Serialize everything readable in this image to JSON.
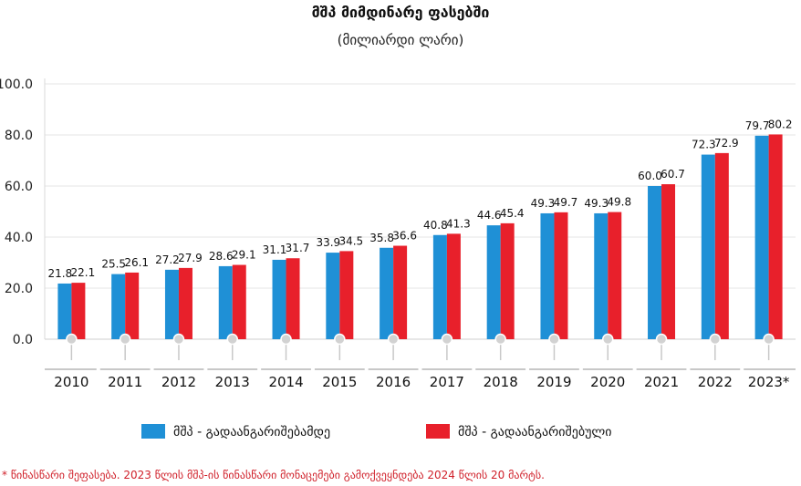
{
  "chart_data": {
    "type": "bar",
    "title": "მშპ მიმდინარე ფასებში",
    "subtitle": "(მილიარდი ლარი)",
    "categories": [
      "2010",
      "2011",
      "2012",
      "2013",
      "2014",
      "2015",
      "2016",
      "2017",
      "2018",
      "2019",
      "2020",
      "2021",
      "2022",
      "2023*"
    ],
    "series": [
      {
        "name": "მშპ - გადაანგარიშებამდე",
        "color": "#1f90d6",
        "values": [
          21.8,
          25.5,
          27.2,
          28.6,
          31.1,
          33.9,
          35.8,
          40.8,
          44.6,
          49.3,
          49.3,
          60.0,
          72.3,
          79.7
        ]
      },
      {
        "name": "მშპ - გადაანგარიშებული",
        "color": "#e8202b",
        "values": [
          22.1,
          26.1,
          27.9,
          29.1,
          31.7,
          34.5,
          36.6,
          41.3,
          45.4,
          49.7,
          49.8,
          60.7,
          72.9,
          80.2
        ]
      }
    ],
    "yticks": [
      "0.0",
      "20.0",
      "40.0",
      "60.0",
      "80.0",
      "100.0"
    ],
    "ylim": [
      0,
      100
    ],
    "grid": true,
    "legend_position": "bottom-center"
  },
  "footnote": "* წინასწარი შეფასება. 2023 წლის მშპ-ის წინასწარი მონაცემები გამოქვეყნდება 2024 წლის 20 მარტს."
}
